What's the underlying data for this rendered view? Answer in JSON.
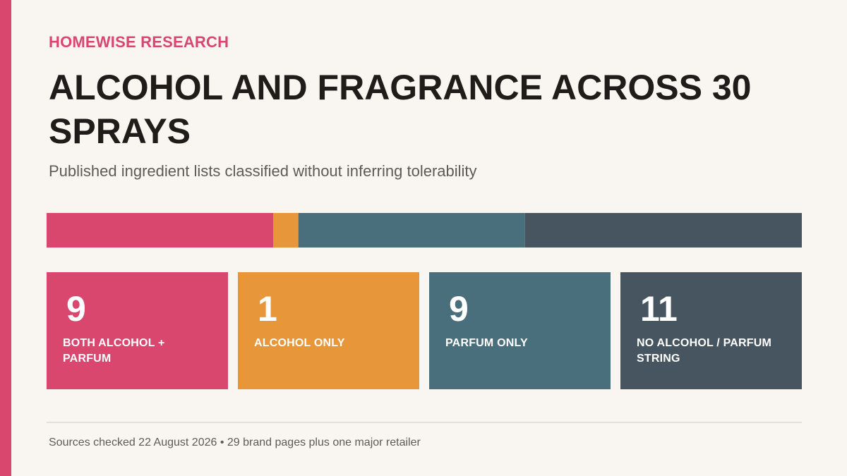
{
  "header": {
    "kicker": "HOMEWISE RESEARCH",
    "title": "ALCOHOL AND FRAGRANCE ACROSS 30 SPRAYS",
    "subtitle": "Published ingredient lists classified without inferring tolerability"
  },
  "chart_data": {
    "type": "bar",
    "orientation": "horizontal-stacked",
    "total": 30,
    "categories": [
      "BOTH ALCOHOL + PARFUM",
      "ALCOHOL ONLY",
      "PARFUM ONLY",
      "NO ALCOHOL / PARFUM STRING"
    ],
    "values": [
      9,
      1,
      9,
      11
    ],
    "colors": [
      "#d9476f",
      "#e8963a",
      "#4a6f7c",
      "#46555f"
    ]
  },
  "cards": [
    {
      "value": "9",
      "label": "BOTH ALCOHOL + PARFUM",
      "color": "#d9476f"
    },
    {
      "value": "1",
      "label": "ALCOHOL ONLY",
      "color": "#e8963a"
    },
    {
      "value": "9",
      "label": "PARFUM ONLY",
      "color": "#4a6f7c"
    },
    {
      "value": "11",
      "label": "NO ALCOHOL / PARFUM STRING",
      "color": "#46555f"
    }
  ],
  "footer": {
    "note": "Sources checked 22 August 2026 • 29 brand pages plus one major retailer"
  }
}
